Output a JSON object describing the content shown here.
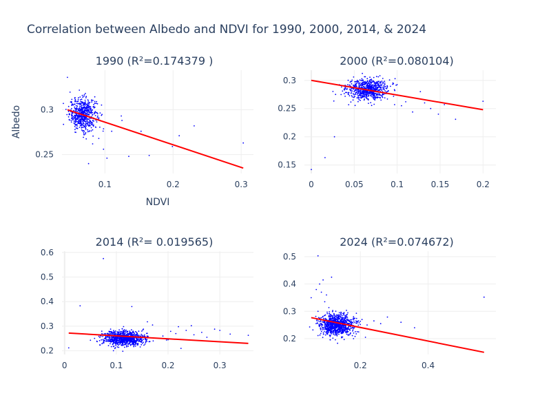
{
  "figure": {
    "title": "Correlation between Albedo and NDVI for 1990, 2000, 2014, & 2024",
    "point_color": "#0000ff",
    "fit_color": "#ff0000",
    "grid_color": "#eeeeee"
  },
  "chart_data": [
    {
      "type": "scatter",
      "title": "1990 (R²=0.174379 )",
      "xlabel": "NDVI",
      "ylabel": "Albedo",
      "xlim": [
        0.037,
        0.318
      ],
      "ylim": [
        0.229,
        0.344
      ],
      "xticks": [
        0.1,
        0.2,
        0.3
      ],
      "xtick_labels": [
        "0.1",
        "0.2",
        "0.3"
      ],
      "yticks": [
        0.25,
        0.3
      ],
      "ytick_labels": [
        "0.25",
        "0.3"
      ],
      "cluster": {
        "x_center": 0.068,
        "x_spread": 0.01,
        "y_center": 0.295,
        "y_spread": 0.009,
        "count": 600
      },
      "points": {
        "x": [
          0.045,
          0.303,
          0.231,
          0.209,
          0.199,
          0.165,
          0.153,
          0.135,
          0.124,
          0.125,
          0.103,
          0.098,
          0.076,
          0.082,
          0.11,
          0.091
        ],
        "y": [
          0.336,
          0.263,
          0.282,
          0.271,
          0.259,
          0.249,
          0.276,
          0.248,
          0.293,
          0.288,
          0.246,
          0.256,
          0.24,
          0.262,
          0.276,
          0.268
        ]
      },
      "fit": {
        "x": [
          0.045,
          0.303
        ],
        "y": [
          0.3,
          0.235
        ]
      }
    },
    {
      "type": "scatter",
      "title": "2000 (R²=0.080104)",
      "xlabel": "",
      "ylabel": "",
      "xlim": [
        -0.008,
        0.215
      ],
      "ylim": [
        0.135,
        0.318
      ],
      "xticks": [
        0,
        0.05,
        0.1,
        0.15,
        0.2
      ],
      "xtick_labels": [
        "0",
        "0.05",
        "0.1",
        "0.15",
        "0.2"
      ],
      "yticks": [
        0.15,
        0.2,
        0.25,
        0.3
      ],
      "ytick_labels": [
        "0.15",
        "0.2",
        "0.25",
        "0.3"
      ],
      "cluster": {
        "x_center": 0.065,
        "x_spread": 0.012,
        "y_center": 0.284,
        "y_spread": 0.009,
        "count": 700
      },
      "points": {
        "x": [
          0.0,
          0.016,
          0.027,
          0.2,
          0.168,
          0.155,
          0.148,
          0.127,
          0.118,
          0.105,
          0.139,
          0.11,
          0.097,
          0.132
        ],
        "y": [
          0.142,
          0.163,
          0.2,
          0.263,
          0.231,
          0.257,
          0.24,
          0.28,
          0.244,
          0.255,
          0.25,
          0.262,
          0.257,
          0.26
        ]
      },
      "fit": {
        "x": [
          0.0,
          0.2
        ],
        "y": [
          0.3,
          0.248
        ]
      }
    },
    {
      "type": "scatter",
      "title": "2014 (R²= 0.019565)",
      "xlabel": "",
      "ylabel": "",
      "xlim": [
        -0.005,
        0.365
      ],
      "ylim": [
        0.185,
        0.605
      ],
      "xticks": [
        0,
        0.1,
        0.2,
        0.3
      ],
      "xtick_labels": [
        "0",
        "0.1",
        "0.2",
        "0.3"
      ],
      "yticks": [
        0.2,
        0.3,
        0.4,
        0.5,
        0.6
      ],
      "ytick_labels": [
        "0.2",
        "0.3",
        "0.4",
        "0.5",
        "0.6"
      ],
      "cluster": {
        "x_center": 0.115,
        "x_spread": 0.02,
        "y_center": 0.25,
        "y_spread": 0.015,
        "count": 900
      },
      "points": {
        "x": [
          0.075,
          0.03,
          0.008,
          0.05,
          0.13,
          0.355,
          0.32,
          0.29,
          0.265,
          0.25,
          0.235,
          0.22,
          0.205,
          0.19,
          0.17,
          0.16,
          0.215,
          0.245,
          0.275,
          0.3,
          0.225,
          0.2
        ],
        "y": [
          0.575,
          0.383,
          0.212,
          0.243,
          0.38,
          0.263,
          0.268,
          0.288,
          0.275,
          0.265,
          0.283,
          0.298,
          0.279,
          0.26,
          0.305,
          0.318,
          0.27,
          0.302,
          0.255,
          0.283,
          0.21,
          0.245
        ]
      },
      "fit": {
        "x": [
          0.008,
          0.355
        ],
        "y": [
          0.272,
          0.23
        ]
      }
    },
    {
      "type": "scatter",
      "title": "2024 (R²=0.074672)",
      "xlabel": "",
      "ylabel": "",
      "xlim": [
        0.035,
        0.6
      ],
      "ylim": [
        0.142,
        0.52
      ],
      "xticks": [
        0.2,
        0.4
      ],
      "xtick_labels": [
        "0.2",
        "0.4"
      ],
      "yticks": [
        0.2,
        0.3,
        0.4,
        0.5
      ],
      "ytick_labels": [
        "0.2",
        "0.3",
        "0.4",
        "0.5"
      ],
      "cluster": {
        "x_center": 0.13,
        "x_spread": 0.025,
        "y_center": 0.25,
        "y_spread": 0.02,
        "count": 900
      },
      "points": {
        "x": [
          0.075,
          0.565,
          0.115,
          0.09,
          0.07,
          0.08,
          0.1,
          0.085,
          0.055,
          0.095,
          0.06,
          0.28,
          0.32,
          0.36,
          0.26,
          0.24,
          0.22,
          0.205,
          0.195,
          0.215,
          0.18,
          0.075
        ],
        "y": [
          0.503,
          0.352,
          0.425,
          0.415,
          0.38,
          0.4,
          0.36,
          0.37,
          0.35,
          0.335,
          0.232,
          0.279,
          0.26,
          0.24,
          0.255,
          0.265,
          0.25,
          0.27,
          0.225,
          0.205,
          0.2,
          0.3
        ]
      },
      "fit": {
        "x": [
          0.055,
          0.565
        ],
        "y": [
          0.277,
          0.15
        ]
      }
    }
  ]
}
